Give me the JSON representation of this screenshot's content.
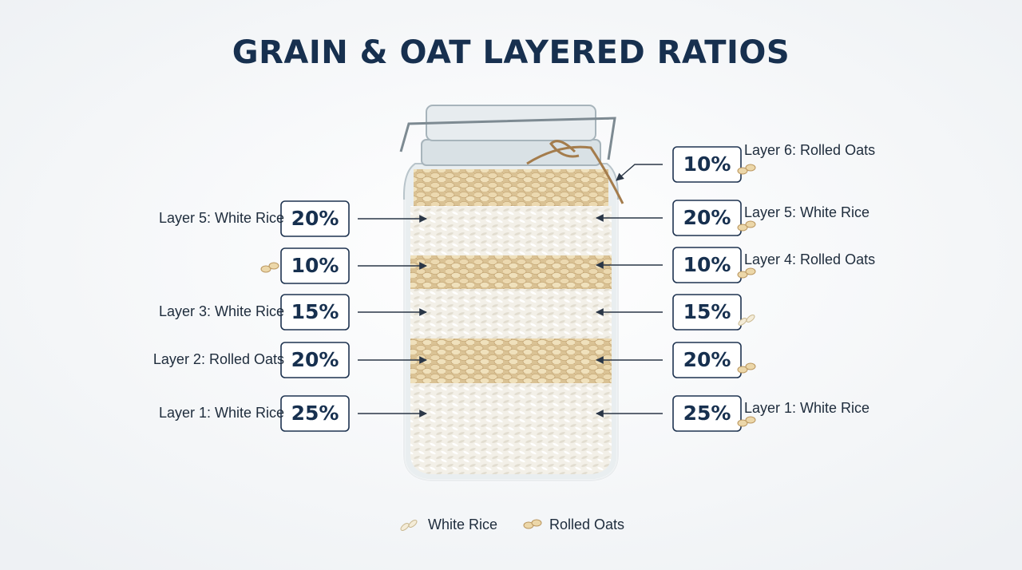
{
  "title": "GRAIN & OAT LAYERED RATIOS",
  "left": [
    {
      "label": "Layer 5: White Rice",
      "percent": "20%"
    },
    {
      "percent": "10%"
    },
    {
      "label": "Layer 3: White Rice",
      "percent": "15%"
    },
    {
      "label": "Layer 2: Rolled Oats",
      "percent": "20%"
    },
    {
      "label": "Layer 1: White Rice",
      "percent": "25%"
    }
  ],
  "right": [
    {
      "label": "Layer 6: Rolled Oats",
      "percent": "10%"
    },
    {
      "label": "Layer 5: White Rice",
      "percent": "20%"
    },
    {
      "label": "Layer 4: Rolled Oats",
      "percent": "10%"
    },
    {
      "percent": "15%"
    },
    {
      "percent": "20%"
    },
    {
      "label": "Layer 1: White Rice",
      "percent": "25%"
    }
  ],
  "legend": [
    "White Rice",
    "Rolled Oats"
  ]
}
